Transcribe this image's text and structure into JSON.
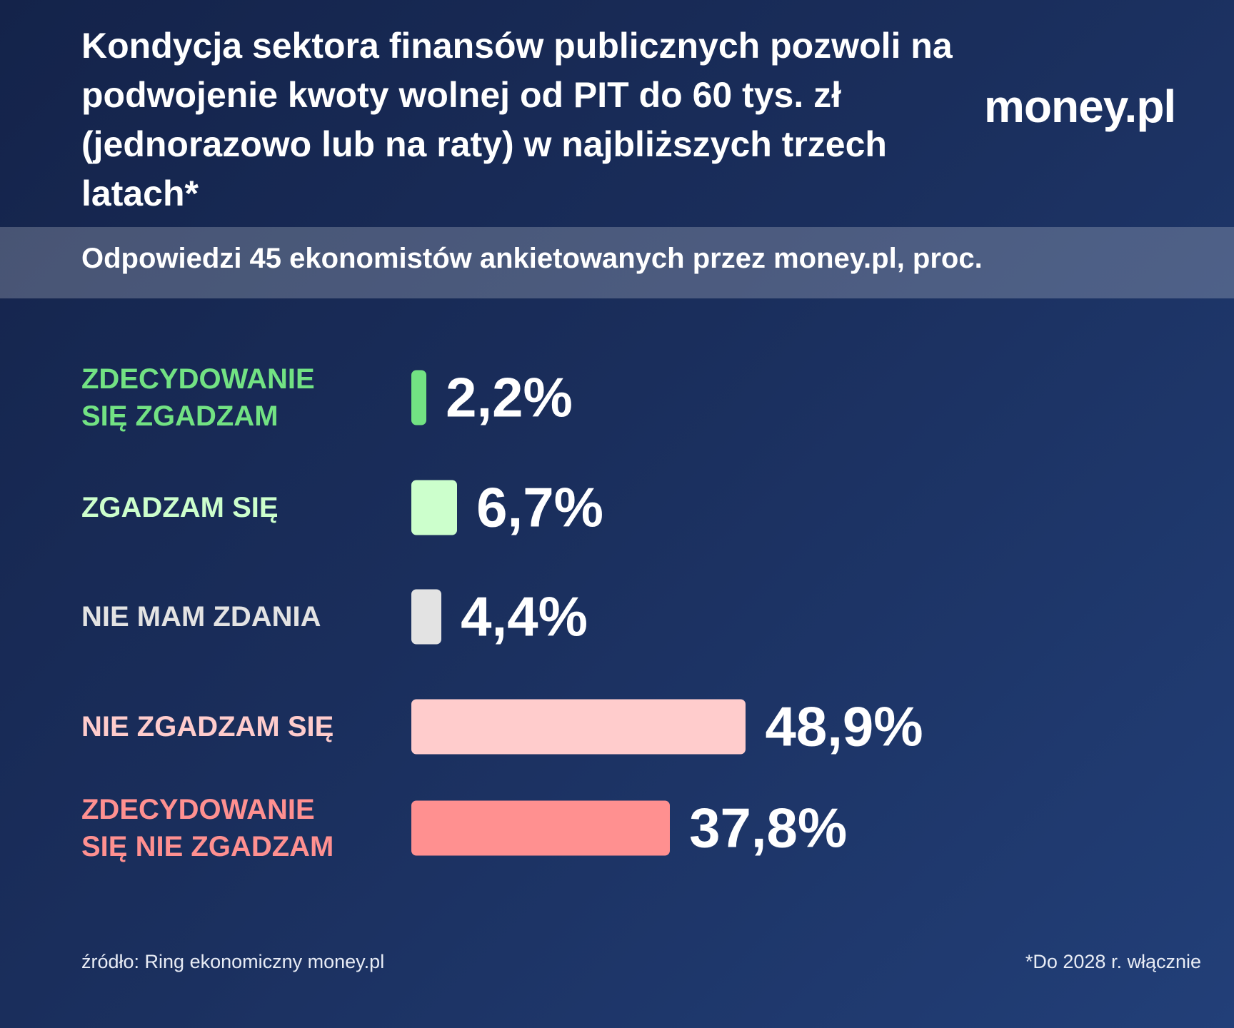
{
  "chart_data": {
    "type": "bar",
    "title": "Kondycja sektora finansów publicznych pozwoli na podwojenie kwoty wolnej od PIT do 60 tys. zł (jednorazowo lub na raty) w najbliższych trzech latach*",
    "subtitle": "Odpowiedzi 45 ekonomistów ankietowanych przez money.pl, proc.",
    "logo": "money.pl",
    "categories": [
      "ZDECYDOWANIE SIĘ ZGADZAM",
      "ZGADZAM SIĘ",
      "NIE MAM ZDANIA",
      "NIE ZGADZAM SIĘ",
      "ZDECYDOWANIE SIĘ NIE ZGADZAM"
    ],
    "values": [
      2.2,
      6.7,
      4.4,
      48.9,
      37.8
    ],
    "value_labels": [
      "2,2%",
      "6,7%",
      "4,4%",
      "48,9%",
      "37,8%"
    ],
    "colors": [
      "#72e283",
      "#ccffcc",
      "#e3e3e3",
      "#ffcccc",
      "#ff9090"
    ],
    "source": "źródło: Ring ekonomiczny money.pl",
    "footnote": "*Do 2028 r. włącznie"
  }
}
